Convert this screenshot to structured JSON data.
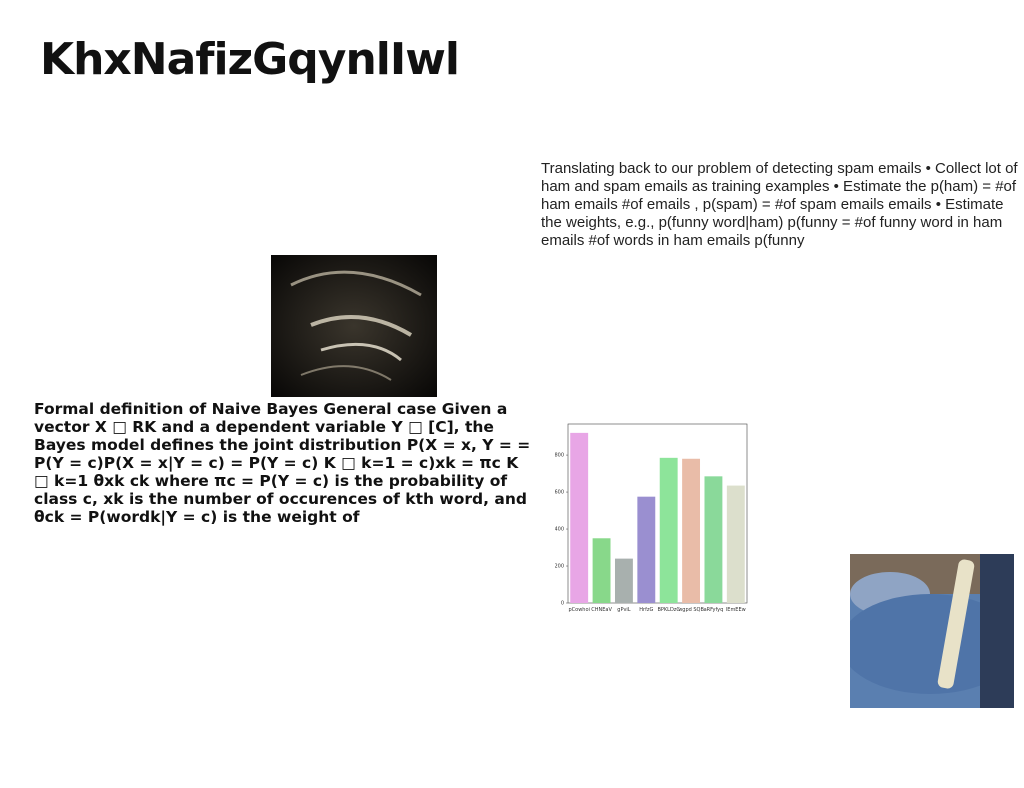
{
  "title": "KhxNafizGqynlIwl",
  "right_text": "Translating back to our problem of detecting spam emails • Collect lot of ham and spam emails as training examples • Estimate the p(ham) = #of ham emails #of emails , p(spam) = #of spam emails emails • Estimate the weights, e.g., p(funny word|ham) p(funny = #of funny word in ham emails #of words in ham emails p(funny",
  "left_text": "Formal definition of Naive Bayes General case Given a vector X □ RK and a dependent variable Y □ [C], the Bayes model defines the joint distribution P(X = x, Y = = P(Y = c)P(X = x|Y = c) = P(Y = c) K □ k=1 = c)xk = πc K □ k=1 θxk ck where πc = P(Y = c) is the probability of class c, xk is the number of occurences of kth word, and θck = P(wordk|Y = c) is the weight of",
  "chart_data": {
    "type": "bar",
    "categories": [
      "pCowhoi",
      "CHNEaV",
      "gPviL",
      "HrfzG",
      "BPKLDzC",
      "wgpd SQB",
      "aRFyfyq",
      "lEmEEw"
    ],
    "values": [
      920,
      350,
      240,
      575,
      785,
      780,
      685,
      635
    ],
    "colors": [
      "#e8a6e6",
      "#88d88a",
      "#a8b0ae",
      "#9a8fd0",
      "#8de49a",
      "#e9bca8",
      "#8ad99a",
      "#dcdfcc"
    ],
    "ylim": [
      0,
      968
    ],
    "yticks": [
      0,
      200,
      400,
      600,
      800
    ]
  }
}
